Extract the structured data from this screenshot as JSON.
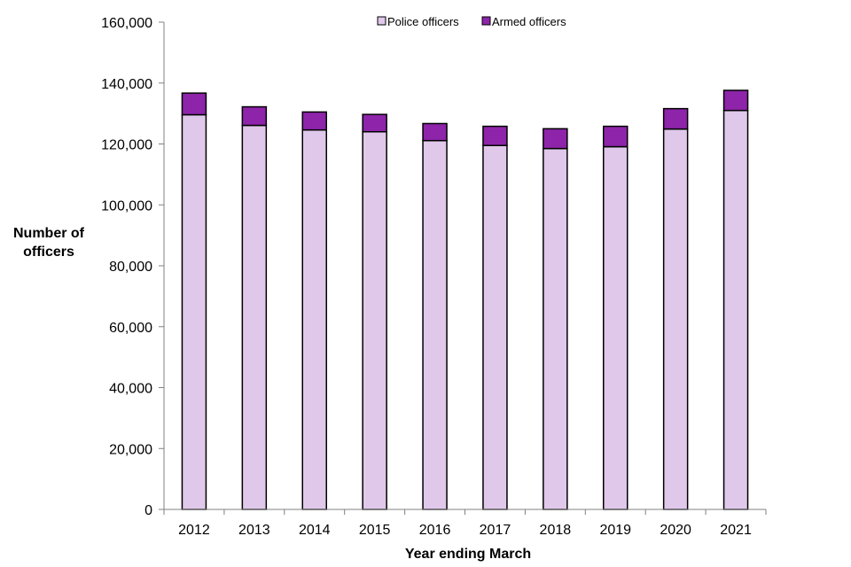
{
  "chart_data": {
    "type": "bar",
    "stacked": true,
    "title": "",
    "xlabel": "Year ending March",
    "ylabel_line1": "Number of",
    "ylabel_line2": "officers",
    "ylim": [
      0,
      160000
    ],
    "yticks": [
      0,
      20000,
      40000,
      60000,
      80000,
      100000,
      120000,
      140000,
      160000
    ],
    "ytick_labels": [
      "0",
      "20,000",
      "40,000",
      "60,000",
      "80,000",
      "100,000",
      "120,000",
      "140,000",
      "160,000"
    ],
    "categories": [
      "2012",
      "2013",
      "2014",
      "2015",
      "2016",
      "2017",
      "2018",
      "2019",
      "2020",
      "2021"
    ],
    "series": [
      {
        "name": "Police officers",
        "color": "#e0c8ea",
        "values": [
          129600,
          126100,
          124600,
          124000,
          121100,
          119500,
          118500,
          119100,
          124900,
          131000
        ]
      },
      {
        "name": "Armed officers",
        "color": "#8e24aa",
        "values": [
          7100,
          6100,
          5900,
          5700,
          5600,
          6300,
          6500,
          6700,
          6700,
          6600
        ]
      }
    ],
    "legend_position": "top-center"
  }
}
